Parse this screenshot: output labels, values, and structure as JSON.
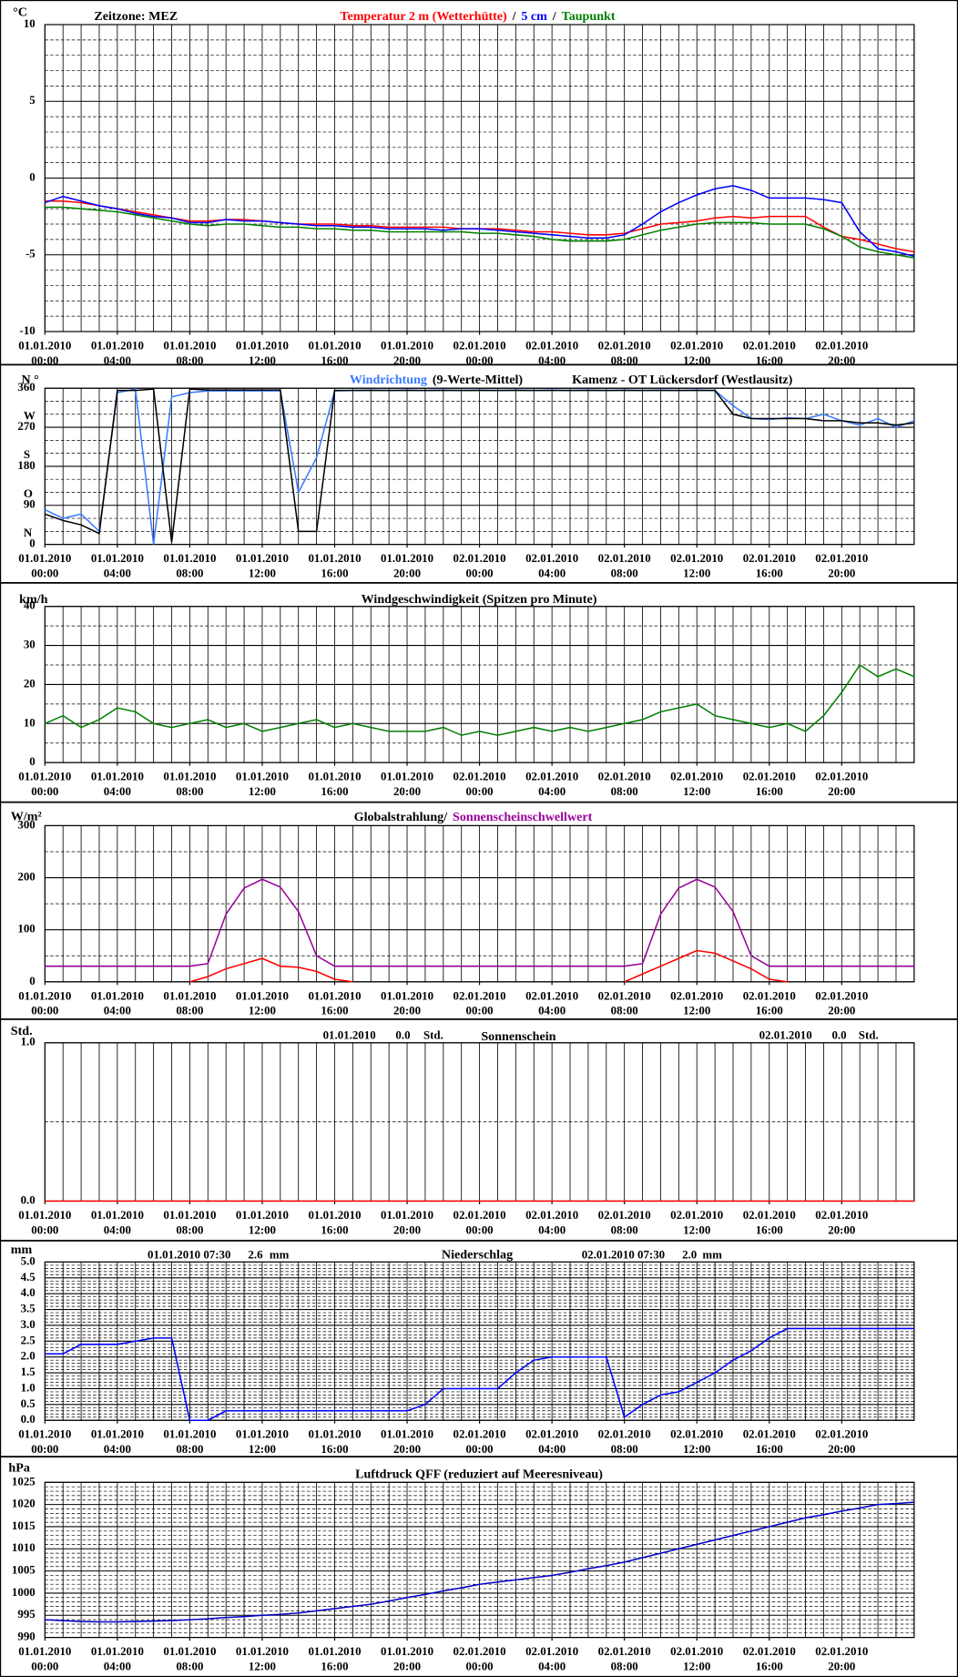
{
  "x_axis": {
    "xlim": [
      0,
      48
    ],
    "xgrid_step": 1,
    "xticks": [
      {
        "value": 0,
        "label": "01.01.2010 00:00"
      },
      {
        "value": 4,
        "label": "01.01.2010 04:00"
      },
      {
        "value": 8,
        "label": "01.01.2010 08:00"
      },
      {
        "value": 12,
        "label": "01.01.2010 12:00"
      },
      {
        "value": 16,
        "label": "01.01.2010 16:00"
      },
      {
        "value": 20,
        "label": "01.01.2010 20:00"
      },
      {
        "value": 24,
        "label": "02.01.2010 00:00"
      },
      {
        "value": 28,
        "label": "02.01.2010 04:00"
      },
      {
        "value": 32,
        "label": "02.01.2010 08:00"
      },
      {
        "value": 36,
        "label": "02.01.2010 12:00"
      },
      {
        "value": 40,
        "label": "02.01.2010 16:00"
      },
      {
        "value": 44,
        "label": "02.01.2010 20:00"
      }
    ],
    "x": [
      0,
      1,
      2,
      3,
      4,
      5,
      6,
      7,
      8,
      9,
      10,
      11,
      12,
      13,
      14,
      15,
      16,
      17,
      18,
      19,
      20,
      21,
      22,
      23,
      24,
      25,
      26,
      27,
      28,
      29,
      30,
      31,
      32,
      33,
      34,
      35,
      36,
      37,
      38,
      39,
      40,
      41,
      42,
      43,
      44,
      45,
      46,
      47,
      48
    ]
  },
  "chart_data": [
    {
      "type": "line",
      "y_unit": "°C",
      "header": "Zeitzone: MEZ",
      "legend_separator": "/",
      "ylim": [
        -10,
        10
      ],
      "yticks": [
        -10,
        -5,
        0,
        5,
        10
      ],
      "ygrid_minor_step": 1,
      "series": [
        {
          "name": "Temperatur 2 m (Wetterhütte)",
          "color": "#ff0000",
          "values": [
            -1.5,
            -1.5,
            -1.6,
            -1.8,
            -2.0,
            -2.2,
            -2.4,
            -2.6,
            -2.8,
            -2.8,
            -2.7,
            -2.7,
            -2.8,
            -2.9,
            -3.0,
            -3.0,
            -3.0,
            -3.1,
            -3.1,
            -3.2,
            -3.2,
            -3.2,
            -3.2,
            -3.3,
            -3.3,
            -3.3,
            -3.4,
            -3.5,
            -3.5,
            -3.6,
            -3.7,
            -3.7,
            -3.6,
            -3.3,
            -3.0,
            -2.9,
            -2.8,
            -2.6,
            -2.5,
            -2.6,
            -2.5,
            -2.5,
            -2.5,
            -3.2,
            -3.8,
            -4.0,
            -4.3,
            -4.6,
            -4.8
          ]
        },
        {
          "name": "5 cm",
          "color": "#0000ff",
          "values": [
            -1.6,
            -1.2,
            -1.5,
            -1.8,
            -2.0,
            -2.3,
            -2.5,
            -2.6,
            -2.9,
            -2.9,
            -2.7,
            -2.8,
            -2.8,
            -2.9,
            -3.0,
            -3.1,
            -3.1,
            -3.2,
            -3.2,
            -3.3,
            -3.3,
            -3.3,
            -3.4,
            -3.3,
            -3.3,
            -3.4,
            -3.5,
            -3.6,
            -3.7,
            -3.8,
            -3.9,
            -3.9,
            -3.7,
            -3.0,
            -2.2,
            -1.6,
            -1.1,
            -0.7,
            -0.5,
            -0.8,
            -1.3,
            -1.3,
            -1.3,
            -1.4,
            -1.6,
            -3.5,
            -4.6,
            -4.8,
            -5.1
          ]
        },
        {
          "name": "Taupunkt",
          "color": "#008000",
          "values": [
            -1.9,
            -1.9,
            -2.0,
            -2.1,
            -2.2,
            -2.4,
            -2.6,
            -2.8,
            -3.0,
            -3.1,
            -3.0,
            -3.0,
            -3.1,
            -3.2,
            -3.2,
            -3.3,
            -3.3,
            -3.4,
            -3.4,
            -3.5,
            -3.5,
            -3.5,
            -3.5,
            -3.5,
            -3.6,
            -3.6,
            -3.7,
            -3.8,
            -4.0,
            -4.1,
            -4.1,
            -4.1,
            -4.0,
            -3.7,
            -3.4,
            -3.2,
            -3.0,
            -2.9,
            -2.9,
            -2.9,
            -3.0,
            -3.0,
            -3.0,
            -3.3,
            -3.8,
            -4.5,
            -4.8,
            -5.0,
            -5.2
          ]
        }
      ]
    },
    {
      "type": "line",
      "y_unit": "N °",
      "station": "Kamenz - OT Lückersdorf (Westlausitz)",
      "ylim": [
        0,
        360
      ],
      "yticks": [
        0,
        90,
        180,
        270,
        360
      ],
      "ygrid_minor_step": 30,
      "compass_labels": [
        {
          "value": 0,
          "label": "N"
        },
        {
          "value": 90,
          "label": "O"
        },
        {
          "value": 180,
          "label": "S"
        },
        {
          "value": 270,
          "label": "W"
        }
      ],
      "series": [
        {
          "name": "Windrichtung",
          "color": "#3a7bff",
          "values": [
            80,
            60,
            70,
            30,
            350,
            358,
            0,
            340,
            350,
            354,
            354,
            354,
            354,
            354,
            120,
            200,
            354,
            355,
            356,
            355,
            356,
            355,
            356,
            355,
            356,
            355,
            356,
            355,
            356,
            355,
            356,
            355,
            356,
            355,
            356,
            355,
            356,
            355,
            320,
            290,
            288,
            292,
            290,
            300,
            285,
            275,
            290,
            270,
            285
          ]
        },
        {
          "name": "(9-Werte-Mittel)",
          "color": "#000000",
          "values": [
            70,
            55,
            45,
            25,
            355,
            355,
            358,
            5,
            358,
            356,
            356,
            356,
            356,
            356,
            30,
            30,
            355,
            355,
            355,
            355,
            355,
            355,
            355,
            355,
            355,
            355,
            355,
            355,
            355,
            355,
            355,
            355,
            355,
            355,
            355,
            355,
            355,
            355,
            300,
            290,
            290,
            290,
            290,
            285,
            285,
            280,
            280,
            275,
            280
          ]
        }
      ]
    },
    {
      "type": "line",
      "y_unit": "km/h",
      "title": "Windgeschwindigkeit (Spitzen pro Minute)",
      "ylim": [
        0,
        40
      ],
      "yticks": [
        0,
        10,
        20,
        30,
        40
      ],
      "ygrid_minor_step": 5,
      "color": "#008000",
      "values": [
        10,
        12,
        9,
        11,
        14,
        13,
        10,
        9,
        10,
        11,
        9,
        10,
        8,
        9,
        10,
        11,
        9,
        10,
        9,
        8,
        8,
        8,
        9,
        7,
        8,
        7,
        8,
        9,
        8,
        9,
        8,
        9,
        10,
        11,
        13,
        14,
        15,
        12,
        11,
        10,
        9,
        10,
        8,
        12,
        18,
        25,
        22,
        24,
        22
      ]
    },
    {
      "type": "line",
      "y_unit": "W/m²",
      "legend_separator": "/",
      "ylim": [
        0,
        300
      ],
      "yticks": [
        0,
        100,
        200,
        300
      ],
      "ygrid_minor_step": 50,
      "series": [
        {
          "name": "Globalstrahlung",
          "color": "#ff0000",
          "legend_color": "#000000",
          "values": [
            null,
            null,
            null,
            null,
            null,
            null,
            null,
            null,
            0,
            10,
            25,
            35,
            45,
            30,
            28,
            20,
            5,
            0,
            null,
            null,
            null,
            null,
            null,
            null,
            null,
            null,
            null,
            null,
            null,
            null,
            null,
            null,
            0,
            15,
            30,
            45,
            60,
            55,
            40,
            25,
            5,
            0,
            null,
            null,
            null,
            null,
            null,
            null,
            null
          ]
        },
        {
          "name": "Sonnenscheinschwellwert",
          "color": "#990099",
          "values": [
            30,
            30,
            30,
            30,
            30,
            30,
            30,
            30,
            30,
            35,
            130,
            180,
            197,
            182,
            135,
            50,
            30,
            30,
            30,
            30,
            30,
            30,
            30,
            30,
            30,
            30,
            30,
            30,
            30,
            30,
            30,
            30,
            30,
            35,
            130,
            180,
            197,
            182,
            135,
            50,
            30,
            30,
            30,
            30,
            30,
            30,
            30,
            30,
            30
          ]
        }
      ]
    },
    {
      "type": "line",
      "y_unit": "Std.",
      "title": "Sonnenschein",
      "ylim": [
        0,
        1
      ],
      "yticks": [
        {
          "value": 0,
          "label": "0.0"
        },
        {
          "value": 1,
          "label": "1.0"
        }
      ],
      "ygrid_minor_step": 0.5,
      "color": "#ff0000",
      "values": [
        0,
        0,
        0,
        0,
        0,
        0,
        0,
        0,
        0,
        0,
        0,
        0,
        0,
        0,
        0,
        0,
        0,
        0,
        0,
        0,
        0,
        0,
        0,
        0,
        0,
        0,
        0,
        0,
        0,
        0,
        0,
        0,
        0,
        0,
        0,
        0,
        0,
        0,
        0,
        0,
        0,
        0,
        0,
        0,
        0,
        0,
        0,
        0,
        0
      ],
      "annotations": [
        {
          "date": "01.01.2010",
          "value": 0,
          "value_label": "0.0",
          "unit": "Std."
        },
        {
          "date": "02.01.2010",
          "value": 0,
          "value_label": "0.0",
          "unit": "Std."
        }
      ]
    },
    {
      "type": "line",
      "y_unit": "mm",
      "title": "Niederschlag",
      "ylim": [
        0,
        5
      ],
      "yticks": [
        {
          "value": 0,
          "label": "0.0"
        },
        {
          "value": 0.5,
          "label": "0.5"
        },
        {
          "value": 1,
          "label": "1.0"
        },
        {
          "value": 1.5,
          "label": "1.5"
        },
        {
          "value": 2,
          "label": "2.0"
        },
        {
          "value": 2.5,
          "label": "2.5"
        },
        {
          "value": 3,
          "label": "3.0"
        },
        {
          "value": 3.5,
          "label": "3.5"
        },
        {
          "value": 4,
          "label": "4.0"
        },
        {
          "value": 4.5,
          "label": "4.5"
        },
        {
          "value": 5,
          "label": "5.0"
        }
      ],
      "ygrid_minor_step": 0.1,
      "color": "#0000ff",
      "values": [
        2.1,
        2.1,
        2.4,
        2.4,
        2.4,
        2.5,
        2.6,
        2.6,
        0,
        0,
        0.3,
        0.3,
        0.3,
        0.3,
        0.3,
        0.3,
        0.3,
        0.3,
        0.3,
        0.3,
        0.3,
        0.5,
        1.0,
        1.0,
        1.0,
        1.0,
        1.5,
        1.9,
        2.0,
        2.0,
        2.0,
        2.0,
        0.1,
        0.5,
        0.8,
        0.9,
        1.2,
        1.5,
        1.9,
        2.2,
        2.6,
        2.9,
        2.9,
        2.9,
        2.9,
        2.9,
        2.9,
        2.9,
        2.9
      ],
      "annotations": [
        {
          "date": "01.01.2010 07:30",
          "value": 2.6,
          "unit": "mm"
        },
        {
          "date": "02.01.2010 07:30",
          "value": 2,
          "value_label": "2.0",
          "unit": "mm"
        }
      ]
    },
    {
      "type": "line",
      "y_unit": "hPa",
      "title": "Luftdruck QFF (reduziert auf Meeresniveau)",
      "ylim": [
        990,
        1025
      ],
      "yticks": [
        990,
        995,
        1000,
        1005,
        1010,
        1015,
        1020,
        1025
      ],
      "ygrid_minor_step": 1,
      "color": "#0000cc",
      "values": [
        994.0,
        993.8,
        993.6,
        993.5,
        993.5,
        993.6,
        993.7,
        993.8,
        994.0,
        994.2,
        994.5,
        994.7,
        995.0,
        995.2,
        995.5,
        996.0,
        996.5,
        997.0,
        997.5,
        998.2,
        999.0,
        999.7,
        1000.5,
        1001.2,
        1002.0,
        1002.5,
        1003.0,
        1003.5,
        1004.0,
        1004.7,
        1005.5,
        1006.2,
        1007.0,
        1008.0,
        1009.0,
        1010.0,
        1011.0,
        1012.0,
        1013.0,
        1014.0,
        1015.0,
        1016.0,
        1017.0,
        1017.7,
        1018.5,
        1019.2,
        1020.0,
        1020.2,
        1020.5
      ]
    }
  ]
}
